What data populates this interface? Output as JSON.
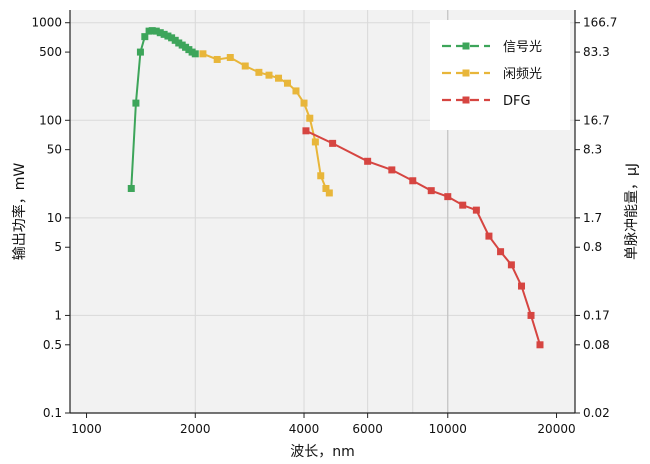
{
  "chart_data": {
    "type": "line",
    "title": "",
    "xlabel": "波长，nm",
    "ylabel": "输出功率，mW",
    "y2label": "单脉冲能量，μJ",
    "x_scale": "log",
    "y_scale": "log",
    "xlim": [
      900,
      22500
    ],
    "ylim": [
      0.1,
      1350
    ],
    "grid": true,
    "legend_position": "top-right",
    "x_ticks": [
      {
        "value": 1000,
        "label": "1000"
      },
      {
        "value": 2000,
        "label": "2000"
      },
      {
        "value": 4000,
        "label": "4000"
      },
      {
        "value": 6000,
        "label": "6000"
      },
      {
        "value": 10000,
        "label": "10000"
      },
      {
        "value": 20000,
        "label": "20000"
      }
    ],
    "x_grid": [
      2000,
      4000,
      6000,
      8000,
      10000
    ],
    "y_ticks": [
      {
        "value": 1000,
        "label": "1000"
      },
      {
        "value": 500,
        "label": "500"
      },
      {
        "value": 100,
        "label": "100"
      },
      {
        "value": 50,
        "label": "50"
      },
      {
        "value": 10,
        "label": "10"
      },
      {
        "value": 5,
        "label": "5"
      },
      {
        "value": 1,
        "label": "1"
      },
      {
        "value": 0.5,
        "label": "0.5"
      },
      {
        "value": 0.1,
        "label": "0.1"
      }
    ],
    "y_grid": [
      1000,
      100,
      10,
      1
    ],
    "y2_ticks": [
      {
        "value": 1000,
        "label": "166.7"
      },
      {
        "value": 500,
        "label": "83.3"
      },
      {
        "value": 100,
        "label": "16.7"
      },
      {
        "value": 50,
        "label": "8.3"
      },
      {
        "value": 10,
        "label": "1.7"
      },
      {
        "value": 5,
        "label": "0.8"
      },
      {
        "value": 1,
        "label": "0.17"
      },
      {
        "value": 0.5,
        "label": "0.08"
      },
      {
        "value": 0.1,
        "label": "0.02"
      }
    ],
    "series": [
      {
        "name": "信号光",
        "color": "#3da55a",
        "x": [
          1330,
          1370,
          1410,
          1450,
          1490,
          1520,
          1560,
          1600,
          1640,
          1680,
          1720,
          1760,
          1800,
          1840,
          1880,
          1920,
          1960,
          2000
        ],
        "y": [
          20,
          150,
          500,
          720,
          820,
          830,
          820,
          790,
          760,
          730,
          700,
          660,
          620,
          590,
          560,
          530,
          500,
          480
        ]
      },
      {
        "name": "闲频光",
        "color": "#e8b63a",
        "x": [
          2100,
          2300,
          2500,
          2750,
          3000,
          3200,
          3400,
          3600,
          3800,
          4000,
          4150,
          4300,
          4450,
          4600,
          4700
        ],
        "y": [
          480,
          420,
          440,
          360,
          310,
          290,
          270,
          240,
          200,
          150,
          105,
          60,
          27,
          20,
          18
        ]
      },
      {
        "name": "DFG",
        "color": "#d64541",
        "x": [
          4050,
          4800,
          6000,
          7000,
          8000,
          9000,
          10000,
          11000,
          12000,
          13000,
          14000,
          15000,
          16000,
          17000,
          18000
        ],
        "y": [
          78,
          58,
          38,
          31,
          24,
          19,
          16.5,
          13.5,
          12,
          6.5,
          4.5,
          3.3,
          2,
          1,
          0.5
        ]
      }
    ]
  }
}
